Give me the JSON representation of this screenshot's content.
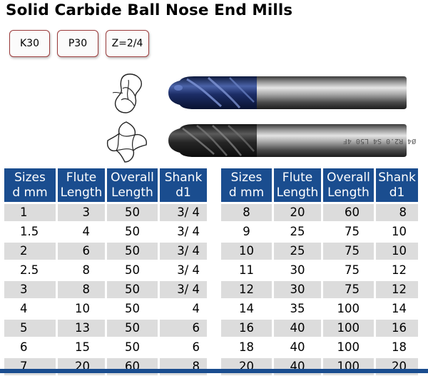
{
  "title": "Solid Carbide Ball Nose End Mills",
  "badges": [
    "K30",
    "P30",
    "Z=2/4"
  ],
  "tool_marking": "Ø4  R2.0  S4  L50  4F",
  "colors": {
    "header_blue": "#1a4d8f",
    "row_gray": "#dcdcdc",
    "badge_border": "#9b3b3b"
  },
  "table_left": {
    "headers": [
      [
        "Sizes",
        "d mm"
      ],
      [
        "Flute",
        "Length"
      ],
      [
        "Overall",
        "Length"
      ],
      [
        "Shank",
        "d1"
      ]
    ],
    "rows": [
      [
        "1",
        "3",
        "50",
        "3/ 4"
      ],
      [
        "1.5",
        "4",
        "50",
        "3/ 4"
      ],
      [
        "2",
        "6",
        "50",
        "3/ 4"
      ],
      [
        "2.5",
        "8",
        "50",
        "3/ 4"
      ],
      [
        "3",
        "8",
        "50",
        "3/ 4"
      ],
      [
        "4",
        "10",
        "50",
        "4"
      ],
      [
        "5",
        "13",
        "50",
        "6"
      ],
      [
        "6",
        "15",
        "50",
        "6"
      ],
      [
        "7",
        "20",
        "60",
        "8"
      ]
    ]
  },
  "table_right": {
    "headers": [
      [
        "Sizes",
        "d mm"
      ],
      [
        "Flute",
        "Length"
      ],
      [
        "Overall",
        "Length"
      ],
      [
        "Shank",
        "d1"
      ]
    ],
    "rows": [
      [
        "8",
        "20",
        "60",
        "8"
      ],
      [
        "9",
        "25",
        "75",
        "10"
      ],
      [
        "10",
        "25",
        "75",
        "10"
      ],
      [
        "11",
        "30",
        "75",
        "12"
      ],
      [
        "12",
        "30",
        "75",
        "12"
      ],
      [
        "14",
        "35",
        "100",
        "14"
      ],
      [
        "16",
        "40",
        "100",
        "16"
      ],
      [
        "18",
        "40",
        "100",
        "18"
      ],
      [
        "20",
        "40",
        "100",
        "20"
      ]
    ]
  }
}
